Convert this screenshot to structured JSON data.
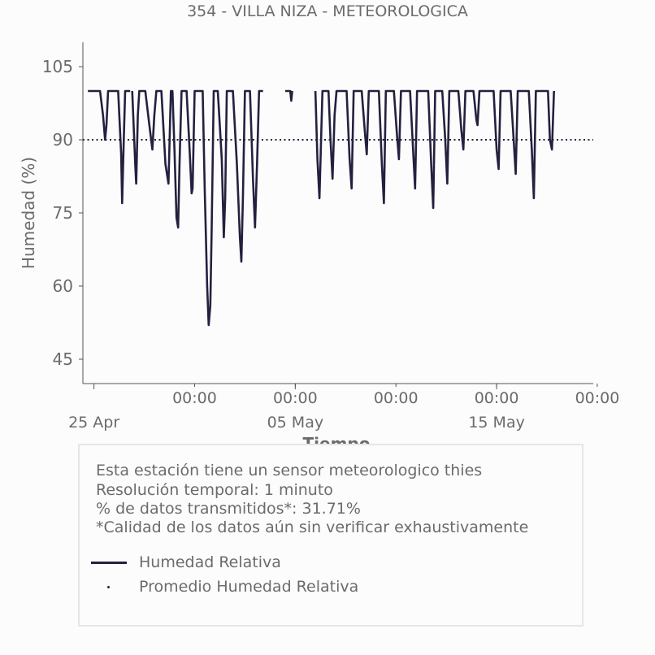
{
  "title": "354 - VILLA NIZA - METEOROLOGICA",
  "colors": {
    "series": "#23213f",
    "text": "#6b6b6b",
    "axis": "#555555",
    "box_border": "#e6e6e6"
  },
  "info": {
    "line1": "Esta estación tiene un sensor meteorologico thies",
    "line2": "Resolución temporal: 1 minuto",
    "line3": "% de datos transmitidos*: 31.71%",
    "line4": "*Calidad de los datos aún sin verificar exhaustivamente"
  },
  "legend": {
    "series_label": "Humedad Relativa",
    "mean_label": "Promedio Humedad Relativa"
  },
  "chart_data": {
    "type": "line",
    "title": "354 - VILLA NIZA - METEOROLOGICA",
    "xlabel": "Tiempo",
    "ylabel": "Humedad (%)",
    "ylim": [
      40,
      110
    ],
    "yticks": [
      45,
      60,
      75,
      90,
      105
    ],
    "xlim_days": [
      -0.55,
      24.8
    ],
    "x_major_ticks": [
      {
        "day": 0,
        "label": "25 Apr"
      },
      {
        "day": 10,
        "label": "05 May"
      },
      {
        "day": 20,
        "label": "15 May"
      }
    ],
    "x_minor_ticks": [
      {
        "day": 5,
        "label": "00:00"
      },
      {
        "day": 10,
        "label": "00:00"
      },
      {
        "day": 15,
        "label": "00:00"
      },
      {
        "day": 20,
        "label": "00:00"
      },
      {
        "day": 25,
        "label": "00:00"
      }
    ],
    "mean_line": {
      "name": "Promedio Humedad Relativa",
      "value": 90
    },
    "series": [
      {
        "name": "Humedad Relativa",
        "x_unit": "days since 25 Apr 00:00",
        "segments": [
          [
            [
              -0.3,
              100
            ],
            [
              0.3,
              100
            ],
            [
              0.45,
              95
            ],
            [
              0.55,
              90
            ],
            [
              0.62,
              93
            ],
            [
              0.7,
              100
            ],
            [
              1.2,
              100
            ],
            [
              1.35,
              87
            ],
            [
              1.4,
              77
            ],
            [
              1.48,
              90
            ],
            [
              1.55,
              100
            ],
            [
              1.8,
              100
            ]
          ],
          [
            [
              1.9,
              100
            ],
            [
              2.05,
              85
            ],
            [
              2.1,
              81
            ],
            [
              2.18,
              95
            ],
            [
              2.25,
              100
            ],
            [
              2.55,
              100
            ],
            [
              2.75,
              93
            ],
            [
              2.9,
              88
            ],
            [
              3.0,
              95
            ],
            [
              3.1,
              100
            ],
            [
              3.35,
              100
            ],
            [
              3.55,
              85
            ],
            [
              3.7,
              81
            ],
            [
              3.82,
              100
            ],
            [
              3.9,
              100
            ],
            [
              4.0,
              88
            ],
            [
              4.1,
              74
            ],
            [
              4.18,
              72
            ],
            [
              4.25,
              85
            ],
            [
              4.35,
              100
            ],
            [
              4.6,
              100
            ],
            [
              4.75,
              88
            ],
            [
              4.85,
              79
            ],
            [
              4.9,
              80
            ],
            [
              5.0,
              100
            ],
            [
              5.2,
              100
            ]
          ],
          [
            [
              5.2,
              100
            ],
            [
              5.4,
              100
            ],
            [
              5.5,
              80
            ],
            [
              5.62,
              60
            ],
            [
              5.7,
              52
            ],
            [
              5.78,
              56
            ],
            [
              5.85,
              72
            ],
            [
              5.95,
              100
            ],
            [
              6.15,
              100
            ],
            [
              6.35,
              86
            ],
            [
              6.45,
              70
            ],
            [
              6.52,
              78
            ],
            [
              6.6,
              100
            ],
            [
              6.9,
              100
            ],
            [
              7.1,
              85
            ],
            [
              7.25,
              70
            ],
            [
              7.32,
              65
            ],
            [
              7.4,
              78
            ],
            [
              7.5,
              100
            ],
            [
              7.75,
              100
            ],
            [
              7.9,
              82
            ],
            [
              8.0,
              72
            ],
            [
              8.1,
              85
            ],
            [
              8.2,
              100
            ],
            [
              8.4,
              100
            ]
          ],
          [
            [
              9.5,
              100
            ],
            [
              9.75,
              100
            ],
            [
              9.8,
              98
            ],
            [
              9.85,
              100
            ]
          ],
          [
            [
              11.0,
              100
            ],
            [
              11.1,
              86
            ],
            [
              11.2,
              78
            ],
            [
              11.28,
              90
            ],
            [
              11.35,
              100
            ],
            [
              11.65,
              100
            ],
            [
              11.75,
              90
            ],
            [
              11.85,
              82
            ],
            [
              11.95,
              95
            ],
            [
              12.05,
              100
            ],
            [
              12.55,
              100
            ],
            [
              12.7,
              86
            ],
            [
              12.8,
              80
            ],
            [
              12.9,
              100
            ],
            [
              13.3,
              100
            ],
            [
              13.45,
              92
            ],
            [
              13.55,
              87
            ],
            [
              13.65,
              100
            ],
            [
              14.15,
              100
            ],
            [
              14.3,
              85
            ],
            [
              14.4,
              77
            ],
            [
              14.5,
              100
            ],
            [
              14.9,
              100
            ],
            [
              15.05,
              91
            ],
            [
              15.15,
              86
            ],
            [
              15.25,
              100
            ],
            [
              15.7,
              100
            ],
            [
              15.85,
              88
            ],
            [
              15.95,
              80
            ],
            [
              16.05,
              100
            ],
            [
              16.6,
              100
            ],
            [
              16.75,
              85
            ],
            [
              16.85,
              76
            ],
            [
              16.95,
              100
            ],
            [
              17.3,
              100
            ],
            [
              17.45,
              90
            ],
            [
              17.55,
              81
            ],
            [
              17.65,
              100
            ],
            [
              18.1,
              100
            ],
            [
              18.25,
              92
            ],
            [
              18.35,
              88
            ],
            [
              18.45,
              100
            ],
            [
              18.85,
              100
            ],
            [
              19.0,
              94
            ],
            [
              19.05,
              93
            ],
            [
              19.15,
              100
            ],
            [
              19.85,
              100
            ],
            [
              20.0,
              88
            ],
            [
              20.1,
              84
            ],
            [
              20.2,
              100
            ],
            [
              20.7,
              100
            ],
            [
              20.85,
              90
            ],
            [
              20.95,
              83
            ],
            [
              21.05,
              100
            ],
            [
              21.6,
              100
            ],
            [
              21.75,
              88
            ],
            [
              21.85,
              78
            ],
            [
              21.95,
              100
            ],
            [
              22.55,
              100
            ],
            [
              22.65,
              90
            ],
            [
              22.75,
              88
            ],
            [
              22.85,
              100
            ]
          ]
        ]
      }
    ]
  }
}
